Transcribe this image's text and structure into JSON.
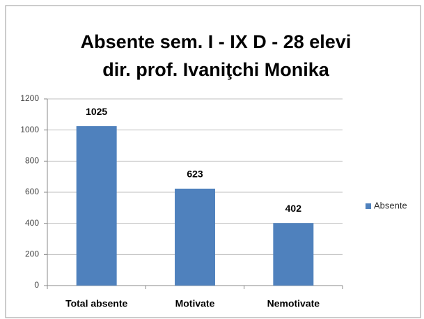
{
  "chart_data": {
    "type": "bar",
    "title": [
      "Absente sem. I - IX D - 28 elevi",
      "dir. prof. Ivaniţchi Monika"
    ],
    "categories": [
      "Total absente",
      "Motivate",
      "Nemotivate"
    ],
    "series": [
      {
        "name": "Absente",
        "color": "#4f81bd",
        "values": [
          1025,
          623,
          402
        ]
      }
    ],
    "ylim": [
      0,
      1200
    ],
    "yticks": [
      0,
      200,
      400,
      600,
      800,
      1000,
      1200
    ],
    "grid": true,
    "legend": "right"
  }
}
